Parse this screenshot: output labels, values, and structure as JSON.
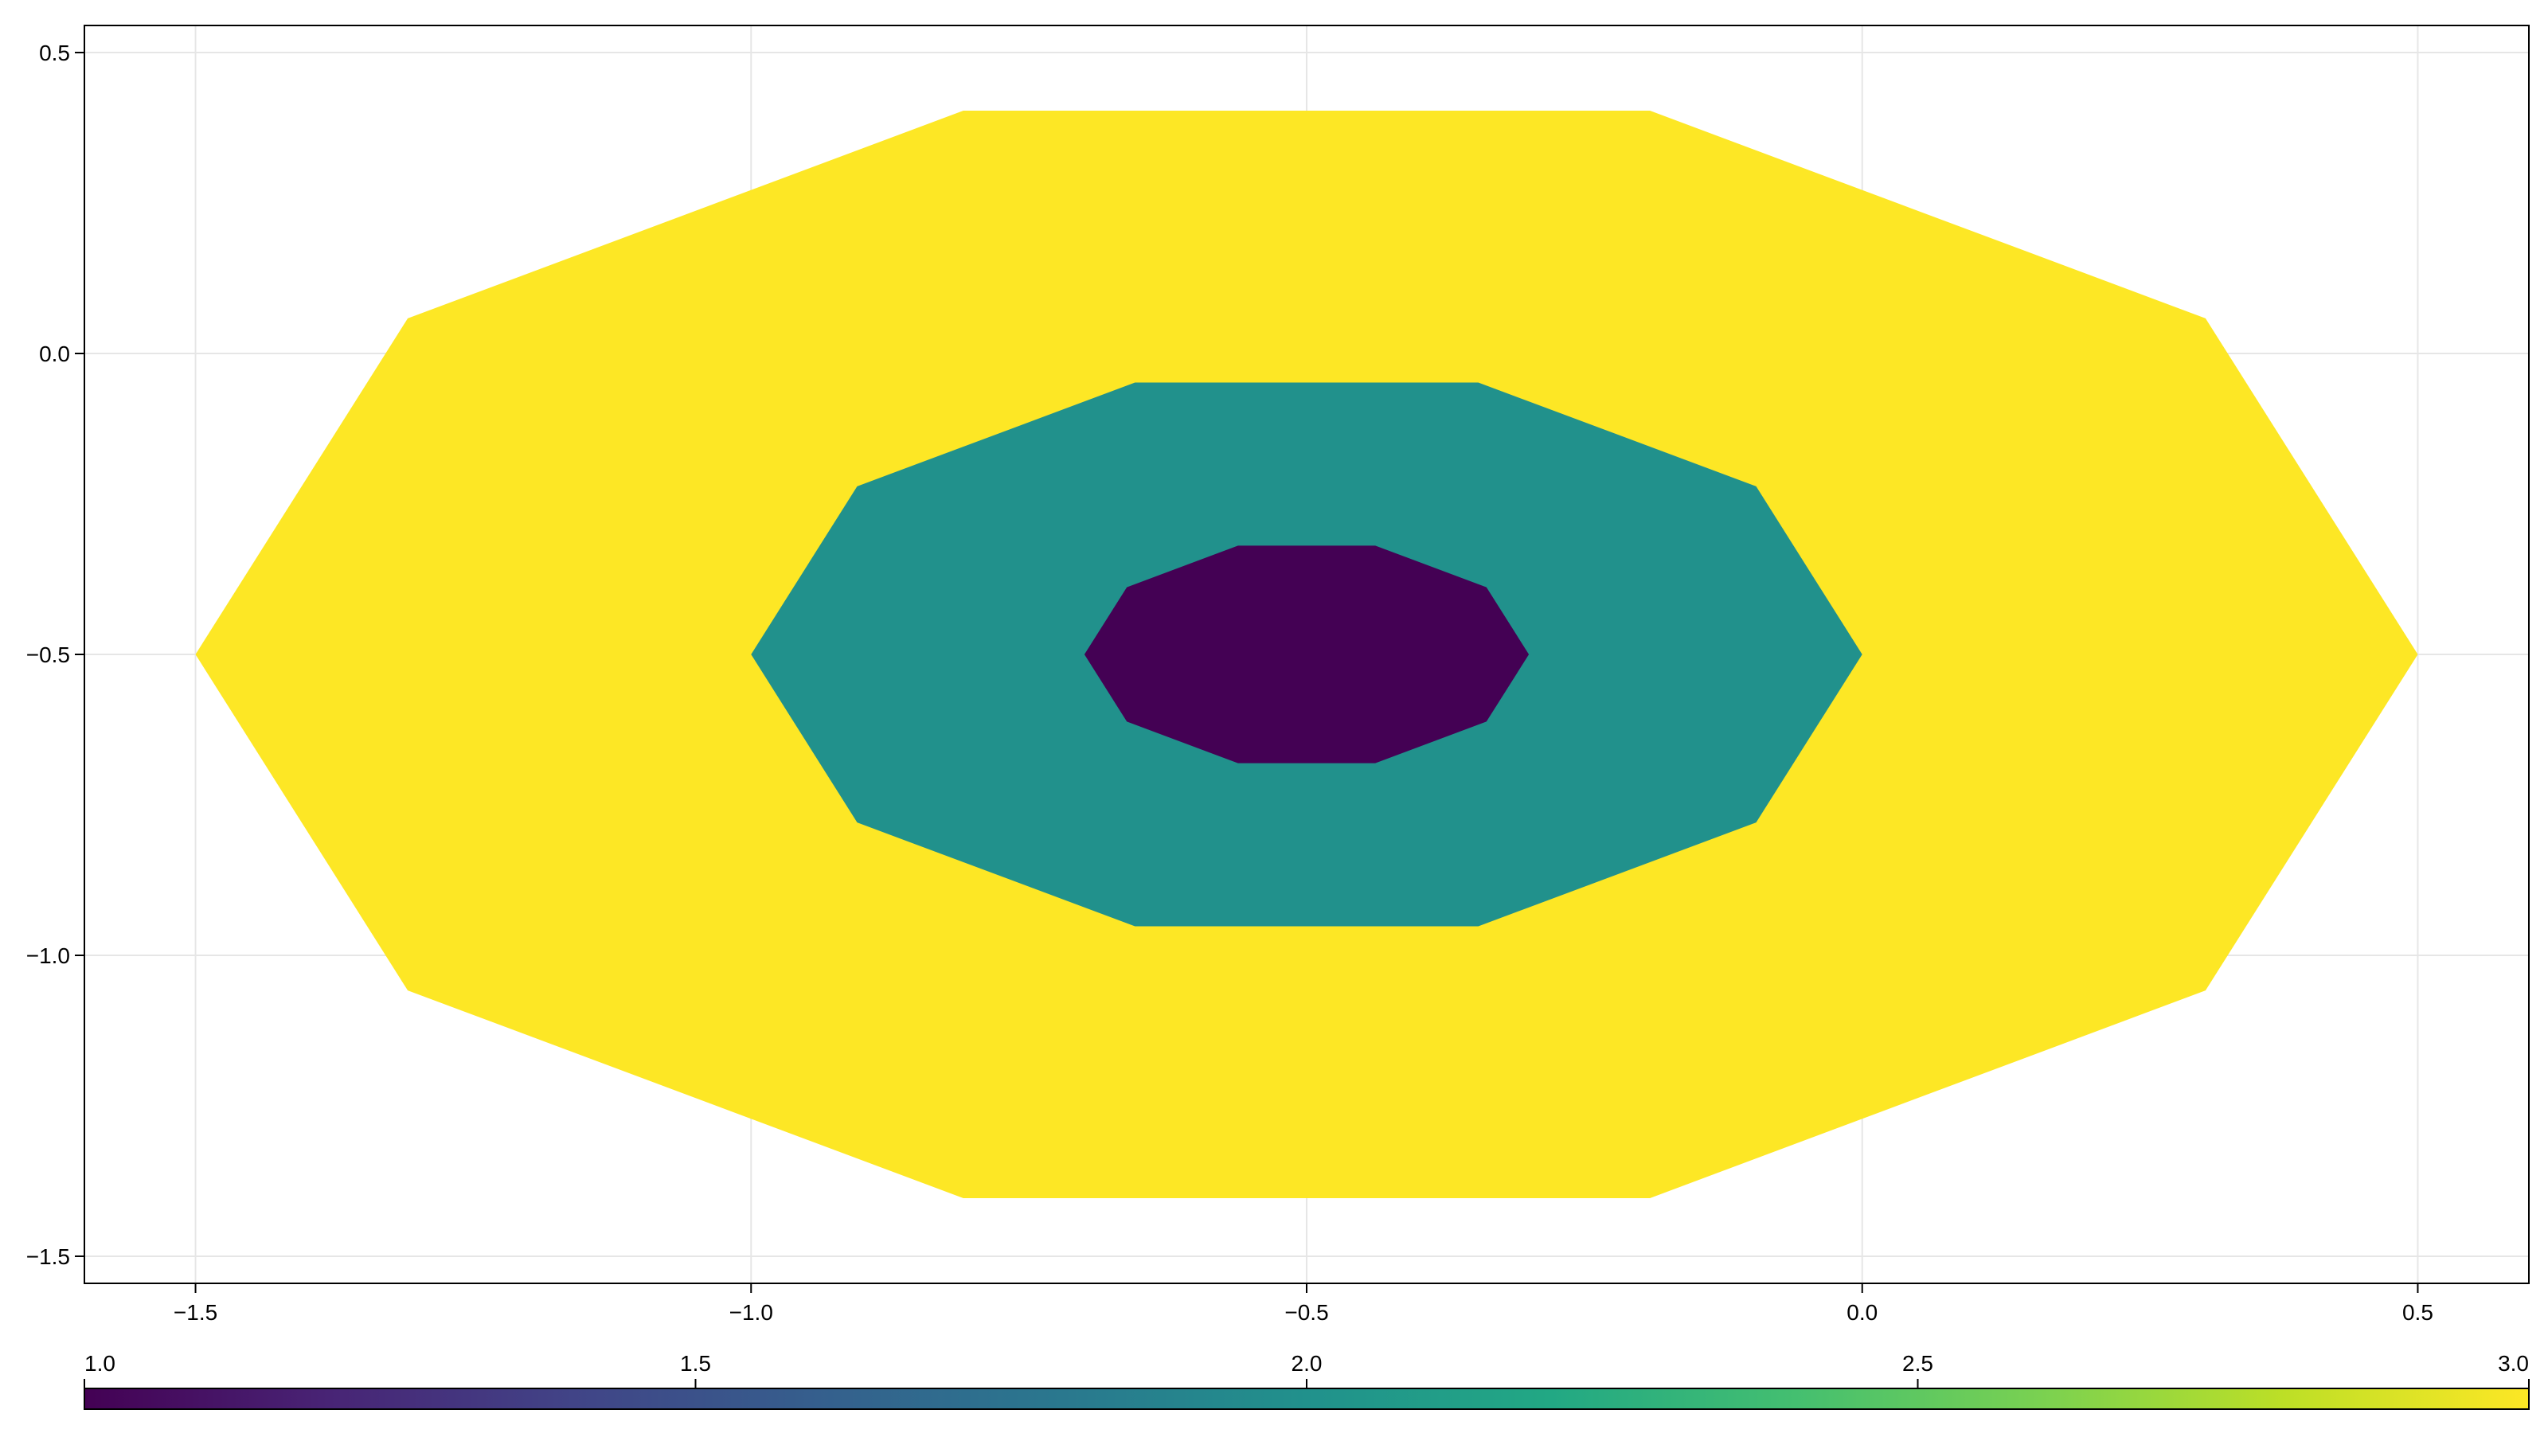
{
  "chart_data": {
    "type": "polygon-fill",
    "title": "",
    "xlabel": "",
    "ylabel": "",
    "xlim": [
      -1.6,
      0.6
    ],
    "ylim": [
      -1.545,
      0.545
    ],
    "xticks": [
      -1.5,
      -1.0,
      -0.5,
      0.0,
      0.5
    ],
    "xtick_labels": [
      "−1.5",
      "−1.0",
      "−0.5",
      "0.0",
      "0.5"
    ],
    "yticks": [
      0.5,
      0.0,
      -0.5,
      -1.0,
      -1.5
    ],
    "ytick_labels": [
      "0.5",
      "0.0",
      "−0.5",
      "−1.0",
      "−1.5"
    ],
    "grid": true,
    "center": [
      -0.5,
      -0.5
    ],
    "polygons": [
      {
        "sides": 10,
        "radius_x": 1.0,
        "radius_y": 0.95,
        "value": 3.0,
        "color": "#fde725"
      },
      {
        "sides": 10,
        "radius_x": 0.5,
        "radius_y": 0.475,
        "value": 2.0,
        "color": "#21918c"
      },
      {
        "sides": 10,
        "radius_x": 0.2,
        "radius_y": 0.19,
        "value": 1.0,
        "color": "#440154"
      }
    ],
    "colorbar": {
      "colormap": "viridis",
      "range": [
        1.0,
        3.0
      ],
      "ticks": [
        1.0,
        1.5,
        2.0,
        2.5,
        3.0
      ],
      "tick_labels": [
        "1.0",
        "1.5",
        "2.0",
        "2.5",
        "3.0"
      ],
      "placement": "bottom"
    }
  }
}
